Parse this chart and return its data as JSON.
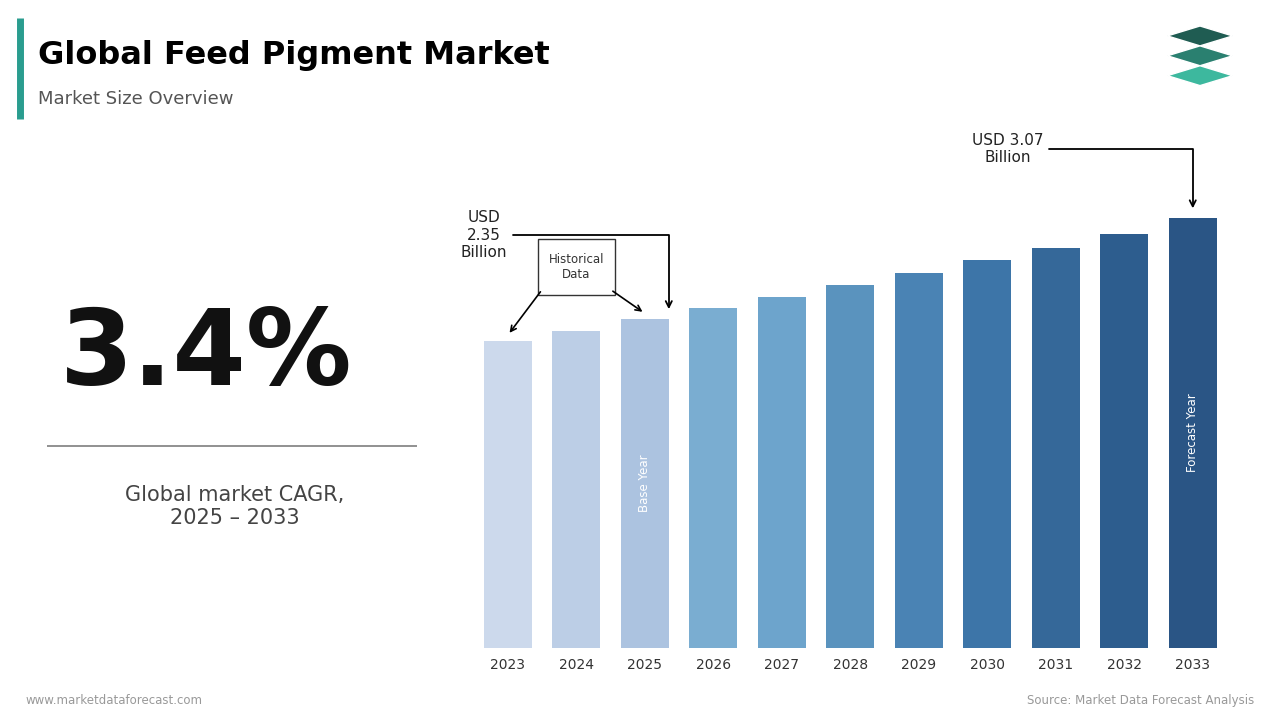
{
  "title": "Global Feed Pigment Market",
  "subtitle": "Market Size Overview",
  "cagr": "3.4%",
  "cagr_label": "Global market CAGR,\n2025 – 2033",
  "years": [
    2023,
    2024,
    2025,
    2026,
    2027,
    2028,
    2029,
    2030,
    2031,
    2032,
    2033
  ],
  "values": [
    2.195,
    2.265,
    2.35,
    2.43,
    2.51,
    2.595,
    2.68,
    2.77,
    2.86,
    2.96,
    3.07
  ],
  "bar_colors": [
    "#ccd9ec",
    "#bccee6",
    "#acc3e0",
    "#7aadd1",
    "#6da4cc",
    "#5a93be",
    "#4a83b4",
    "#3d75a8",
    "#356899",
    "#2d5d8e",
    "#2a5585"
  ],
  "historical_label": "Historical\nData",
  "base_year_label": "Base Year",
  "forecast_year_label": "Forecast Year",
  "annotation_2025_text": "USD\n2.35\nBillion",
  "annotation_2033_text": "USD 3.07\nBillion",
  "footer_left": "www.marketdataforecast.com",
  "footer_right": "Source: Market Data Forecast Analysis",
  "background_color": "#ffffff",
  "title_color": "#000000",
  "subtitle_color": "#555555",
  "ylim": [
    0,
    3.6
  ]
}
